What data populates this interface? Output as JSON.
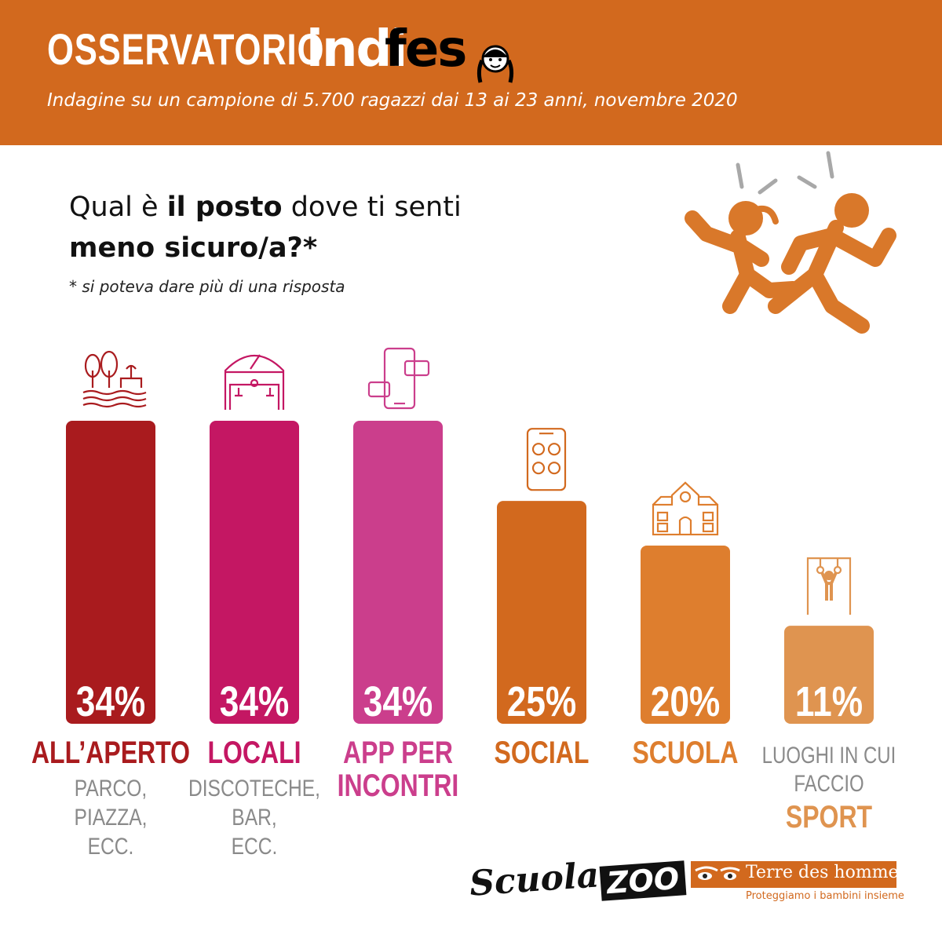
{
  "header": {
    "brand_left": "OSSERVATORIO",
    "brand_right_a": "indi",
    "brand_right_b": "fes",
    "subtitle": "Indagine su un campione di 5.700 ragazzi dai 13 ai 23 anni, novembre 2020"
  },
  "question": {
    "part1": "Qual è ",
    "part2_bold": "il posto",
    "part3": " dove ti senti",
    "line2_bold": "meno sicuro/a?*",
    "footnote": "* si poteva dare più di una risposta"
  },
  "colors": {
    "header_bg": "#d2691e",
    "dark_red": "#a91b1e",
    "magenta": "#c41763",
    "pink": "#cb3e8c",
    "orange": "#d2691e",
    "light_orange": "#de7e2e",
    "peach": "#df9450",
    "caption_gray": "#8a8a8a"
  },
  "icons": [
    "park-icon",
    "disco-icon",
    "dating-app-icon",
    "social-phone-icon",
    "school-icon",
    "gym-rings-icon",
    "runners-icon",
    "girl-face-icon"
  ],
  "chart_data": {
    "type": "bar",
    "ylim": [
      0,
      34
    ],
    "categories": [
      {
        "label": "ALL'APERTO",
        "label_lines": [
          "ALL’APERTO"
        ],
        "detail_lines": [
          "PARCO,",
          "PIAZZA,",
          "ECC."
        ],
        "value": 34,
        "value_label": "34%",
        "color": "#a91b1e",
        "icon": "park-icon"
      },
      {
        "label": "LOCALI",
        "label_lines": [
          "LOCALI"
        ],
        "detail_lines": [
          "DISCOTECHE,",
          "BAR,",
          "ECC."
        ],
        "value": 34,
        "value_label": "34%",
        "color": "#c41763",
        "icon": "disco-icon"
      },
      {
        "label": "APP PER INCONTRI",
        "label_lines": [
          "APP PER",
          "INCONTRI"
        ],
        "detail_lines": [],
        "value": 34,
        "value_label": "34%",
        "color": "#cb3e8c",
        "icon": "dating-app-icon"
      },
      {
        "label": "SOCIAL",
        "label_lines": [
          "SOCIAL"
        ],
        "detail_lines": [],
        "value": 25,
        "value_label": "25%",
        "color": "#d2691e",
        "icon": "social-phone-icon"
      },
      {
        "label": "SCUOLA",
        "label_lines": [
          "SCUOLA"
        ],
        "detail_lines": [],
        "value": 20,
        "value_label": "20%",
        "color": "#de7e2e",
        "icon": "school-icon"
      },
      {
        "label": "SPORT",
        "pre_lines": [
          "LUOGHI IN CUI",
          "FACCIO"
        ],
        "label_lines": [
          "SPORT"
        ],
        "detail_lines": [],
        "value": 11,
        "value_label": "11%",
        "color": "#df9450",
        "icon": "gym-rings-icon"
      }
    ]
  },
  "logos": {
    "scuola_a": "Scuola",
    "scuola_b": "ZOO",
    "tdh_name": "Terre des hommes",
    "tdh_tag": "Proteggiamo i bambini insieme"
  }
}
